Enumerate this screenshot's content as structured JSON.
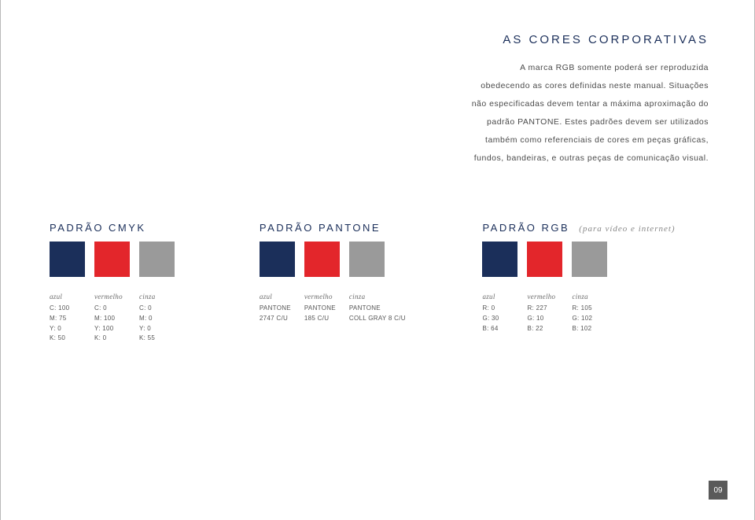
{
  "title_color": "#1b2f5a",
  "page_title": "AS CORES CORPORATIVAS",
  "intro_line1": "A marca RGB somente poderá ser reproduzida",
  "intro_line2": "obedecendo as cores definidas neste manual. Situações",
  "intro_line3": "não especificadas devem tentar a máxima aproximação do",
  "intro_line4": "padrão PANTONE. Estes padrões devem ser utilizados",
  "intro_line5": "também como referenciais de cores em peças gráficas,",
  "intro_line6": "fundos, bandeiras, e outras peças de comunicação visual.",
  "heading_color": "#1b2f5a",
  "cmyk": {
    "heading": "PADRÃO CMYK",
    "colors": {
      "azul": {
        "swatch": "#1b2f5a",
        "name": "azul",
        "l1": "C: 100",
        "l2": "M: 75",
        "l3": "Y: 0",
        "l4": "K: 50"
      },
      "vermelho": {
        "swatch": "#e3262b",
        "name": "vermelho",
        "l1": "C: 0",
        "l2": "M: 100",
        "l3": "Y: 100",
        "l4": "K: 0"
      },
      "cinza": {
        "swatch": "#9a9a9a",
        "name": "cinza",
        "l1": "C: 0",
        "l2": "M: 0",
        "l3": "Y: 0",
        "l4": "K: 55"
      }
    }
  },
  "pantone": {
    "heading": "PADRÃO PANTONE",
    "colors": {
      "azul": {
        "swatch": "#1b2f5a",
        "name": "azul",
        "l1": "PANTONE",
        "l2": "2747 C/U"
      },
      "vermelho": {
        "swatch": "#e3262b",
        "name": "vermelho",
        "l1": "PANTONE",
        "l2": "185 C/U"
      },
      "cinza": {
        "swatch": "#9a9a9a",
        "name": "cinza",
        "l1": "PANTONE",
        "l2": "COLL GRAY 8 C/U"
      }
    }
  },
  "rgb": {
    "heading": "PADRÃO RGB",
    "note": "(para vídeo e internet)",
    "colors": {
      "azul": {
        "swatch": "#1b2f5a",
        "name": "azul",
        "l1": "R: 0",
        "l2": "G: 30",
        "l3": "B: 64"
      },
      "vermelho": {
        "swatch": "#e3262b",
        "name": "vermelho",
        "l1": "R: 227",
        "l2": "G: 10",
        "l3": "B: 22"
      },
      "cinza": {
        "swatch": "#9a9a9a",
        "name": "cinza",
        "l1": "R: 105",
        "l2": "G: 102",
        "l3": "B: 102"
      }
    }
  },
  "page_number": "09"
}
